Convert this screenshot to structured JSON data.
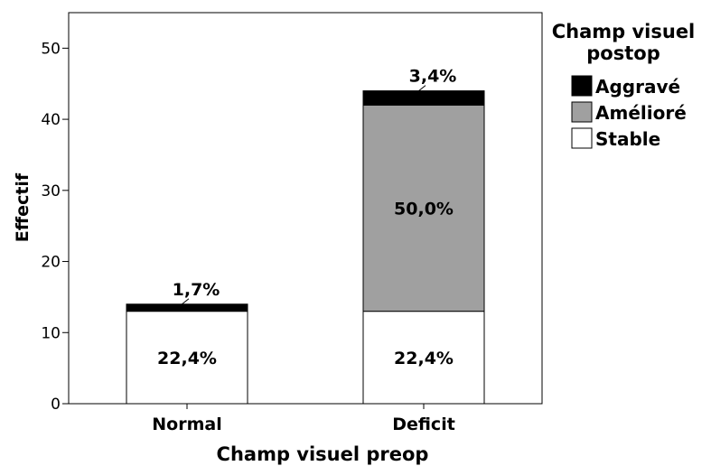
{
  "chart_data": {
    "type": "bar",
    "stacked": true,
    "xlabel": "Champ visuel preop",
    "ylabel": "Effectif",
    "ylim": [
      0,
      55
    ],
    "yticks": [
      0,
      10,
      20,
      30,
      40,
      50
    ],
    "categories": [
      "Normal",
      "Deficit"
    ],
    "legend": {
      "title_lines": [
        "Champ visuel",
        "postop"
      ],
      "position": "right"
    },
    "series": [
      {
        "name": "Stable",
        "values": [
          13,
          13
        ],
        "color": "#ffffff",
        "labels": [
          "22,4%",
          "22,4%"
        ]
      },
      {
        "name": "Amélioré",
        "values": [
          0,
          29
        ],
        "color": "#a0a0a0",
        "labels": [
          "",
          "50,0%"
        ]
      },
      {
        "name": "Aggravé",
        "values": [
          1,
          2
        ],
        "color": "#000000",
        "labels": [
          "1,7%",
          "3,4%"
        ]
      }
    ],
    "legend_order": [
      "Aggravé",
      "Amélioré",
      "Stable"
    ],
    "grid": false
  }
}
